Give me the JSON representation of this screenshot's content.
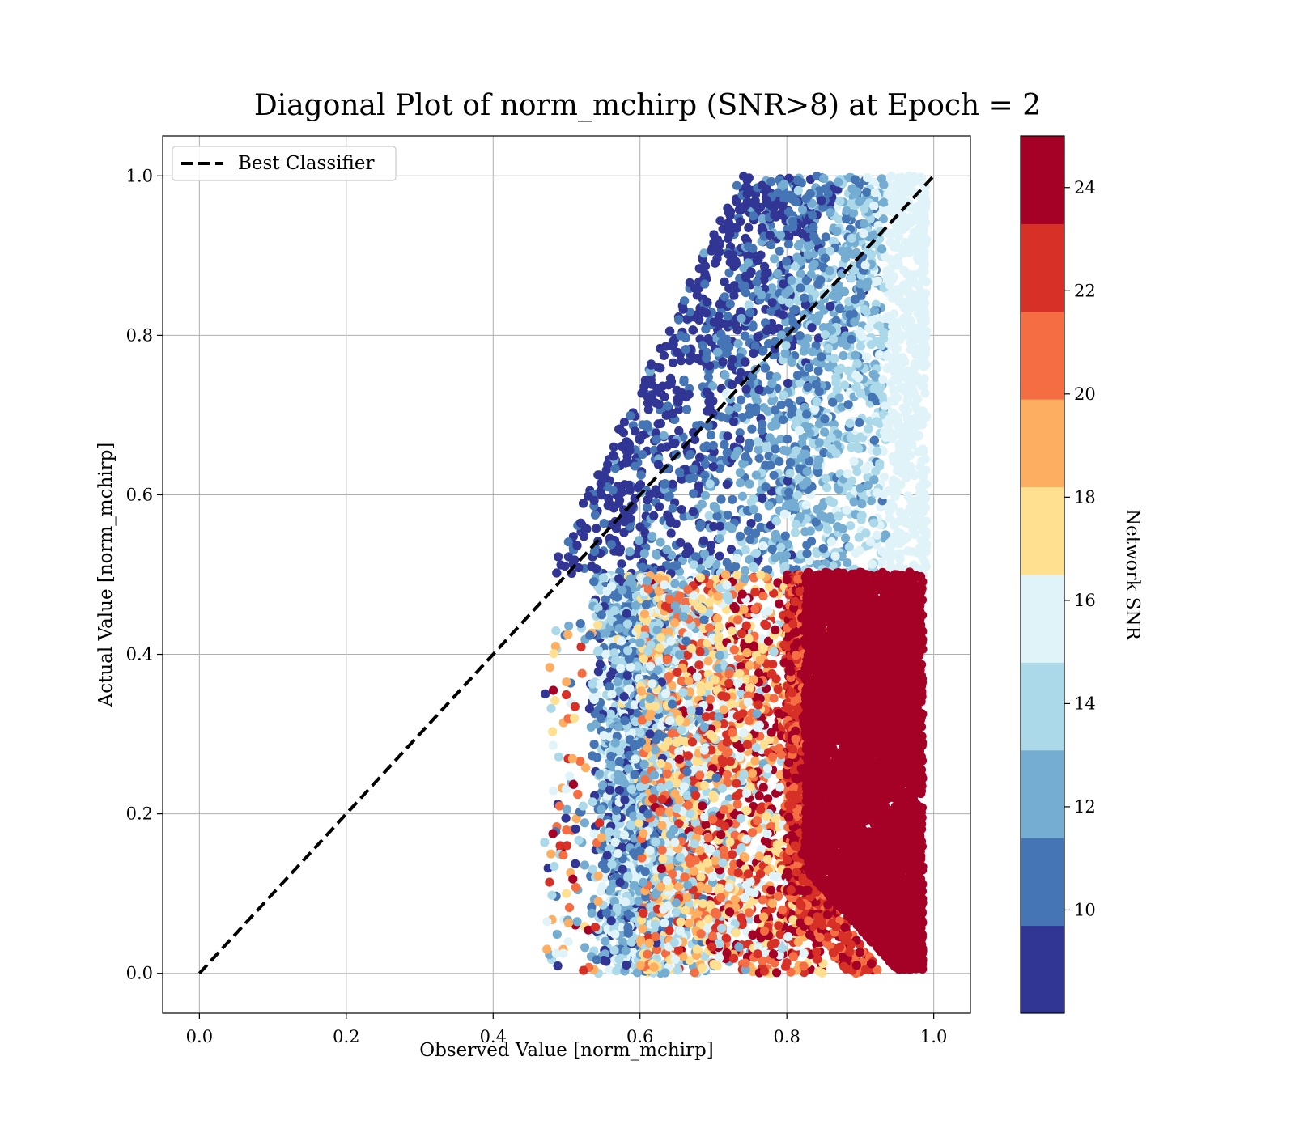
{
  "chart_data": {
    "type": "scatter",
    "title": "Diagonal Plot of norm_mchirp (SNR>8) at Epoch = 2",
    "xlabel": "Observed Value [norm_mchirp]",
    "ylabel": "Actual Value [norm_mchirp]",
    "xlim": [
      -0.05,
      1.05
    ],
    "ylim": [
      -0.05,
      1.05
    ],
    "xticks": [
      "0.0",
      "0.2",
      "0.4",
      "0.6",
      "0.8",
      "1.0"
    ],
    "yticks": [
      "0.0",
      "0.2",
      "0.4",
      "0.6",
      "0.8",
      "1.0"
    ],
    "xtick_values": [
      0.0,
      0.2,
      0.4,
      0.6,
      0.8,
      1.0
    ],
    "ytick_values": [
      0.0,
      0.2,
      0.4,
      0.6,
      0.8,
      1.0
    ],
    "grid": true,
    "legend": {
      "placement": "upper-left",
      "entries": [
        "Best Classifier"
      ]
    },
    "reference_line": {
      "name": "Best Classifier",
      "style": "dashed",
      "color": "#000000",
      "x": [
        0.0,
        1.0
      ],
      "y": [
        0.0,
        1.0
      ]
    },
    "colorbar": {
      "label": "Network SNR",
      "range": [
        8,
        25
      ],
      "ticks": [
        "10",
        "12",
        "14",
        "16",
        "18",
        "20",
        "22",
        "24"
      ],
      "tick_values": [
        10,
        12,
        14,
        16,
        18,
        20,
        22,
        24
      ],
      "colors": [
        "#313695",
        "#4575b4",
        "#74add1",
        "#abd9e9",
        "#e0f3f8",
        "#fee090",
        "#fdae61",
        "#f46d43",
        "#d73027",
        "#a50026"
      ]
    },
    "regions": [
      {
        "name": "high SNR block",
        "x": [
          0.82,
          0.99
        ],
        "y": [
          0.0,
          0.5
        ],
        "snr": 25
      },
      {
        "name": "mid SNR mixed",
        "x": [
          0.56,
          0.85
        ],
        "y": [
          0.0,
          0.5
        ],
        "snr_range": [
          8,
          25
        ]
      },
      {
        "name": "low SNR upper",
        "x": [
          0.52,
          0.99
        ],
        "y": [
          0.5,
          1.0
        ],
        "snr_range": [
          8,
          16
        ]
      }
    ]
  }
}
